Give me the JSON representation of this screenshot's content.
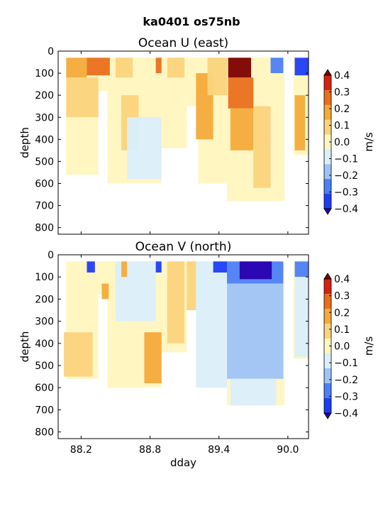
{
  "figure_title": "ka0401 os75nb",
  "colors": {
    "levels": [
      "#3b00e0",
      "#1f3df5",
      "#4d7ff7",
      "#9ec3f8",
      "#dbeefb",
      "#fff6c2",
      "#fbd37c",
      "#f4aa3a",
      "#ea6f1c",
      "#d4220f",
      "#a00000"
    ],
    "below_min": "#2a00b0",
    "above_max": "#7d0000",
    "no_data": "#ffffff"
  },
  "chart_data": [
    {
      "type": "heatmap",
      "title": "Ocean U (east)",
      "ylabel": "depth",
      "xlabel": "",
      "xlim": [
        88.0,
        90.18
      ],
      "ylim": [
        830,
        0
      ],
      "x_ticks": [
        "88.2",
        "88.8",
        "89.4",
        "90.0"
      ],
      "y_ticks": [
        "0",
        "100",
        "200",
        "300",
        "400",
        "500",
        "600",
        "700",
        "800"
      ],
      "colorbar": {
        "label": "m/s",
        "levels": [
          -0.4,
          -0.35,
          -0.25,
          -0.15,
          -0.05,
          0.05,
          0.15,
          0.25,
          0.35,
          0.4
        ],
        "tick_labels": [
          "0.4",
          "0.3",
          "0.2",
          "0.1",
          "0.0",
          "−0.1",
          "−0.2",
          "−0.3",
          "−0.4"
        ],
        "extend": "both"
      },
      "depth_top": 30,
      "coverage": [
        {
          "x_start": 88.07,
          "x_end": 88.35,
          "max_depth": 560
        },
        {
          "x_start": 88.35,
          "x_end": 88.43,
          "max_depth": 180
        },
        {
          "x_start": 88.43,
          "x_end": 88.9,
          "max_depth": 600
        },
        {
          "x_start": 88.9,
          "x_end": 89.12,
          "max_depth": 440
        },
        {
          "x_start": 89.12,
          "x_end": 89.22,
          "max_depth": 250
        },
        {
          "x_start": 89.22,
          "x_end": 89.47,
          "max_depth": 600
        },
        {
          "x_start": 89.47,
          "x_end": 89.97,
          "max_depth": 680
        },
        {
          "x_start": 90.05,
          "x_end": 90.18,
          "max_depth": 470
        }
      ],
      "regions": [
        {
          "x_start": 88.07,
          "x_end": 88.25,
          "depth_start": 30,
          "depth_end": 120,
          "value": 0.18
        },
        {
          "x_start": 88.25,
          "x_end": 88.45,
          "depth_start": 30,
          "depth_end": 110,
          "value": 0.25
        },
        {
          "x_start": 88.07,
          "x_end": 88.35,
          "depth_start": 120,
          "depth_end": 300,
          "value": 0.08
        },
        {
          "x_start": 88.07,
          "x_end": 88.3,
          "depth_start": 300,
          "depth_end": 560,
          "value": -0.02
        },
        {
          "x_start": 88.5,
          "x_end": 88.65,
          "depth_start": 30,
          "depth_end": 120,
          "value": 0.12
        },
        {
          "x_start": 88.55,
          "x_end": 88.7,
          "depth_start": 200,
          "depth_end": 450,
          "value": 0.1
        },
        {
          "x_start": 88.6,
          "x_end": 88.9,
          "depth_start": 300,
          "depth_end": 580,
          "value": -0.06
        },
        {
          "x_start": 88.85,
          "x_end": 88.9,
          "depth_start": 30,
          "depth_end": 100,
          "value": 0.32
        },
        {
          "x_start": 88.95,
          "x_end": 89.1,
          "depth_start": 30,
          "depth_end": 120,
          "value": 0.1
        },
        {
          "x_start": 89.2,
          "x_end": 89.35,
          "depth_start": 100,
          "depth_end": 400,
          "value": 0.2
        },
        {
          "x_start": 89.3,
          "x_end": 89.47,
          "depth_start": 30,
          "depth_end": 200,
          "value": 0.07
        },
        {
          "x_start": 89.48,
          "x_end": 89.68,
          "depth_start": 30,
          "depth_end": 120,
          "value": 0.4
        },
        {
          "x_start": 89.48,
          "x_end": 89.7,
          "depth_start": 120,
          "depth_end": 260,
          "value": 0.3
        },
        {
          "x_start": 89.5,
          "x_end": 89.7,
          "depth_start": 260,
          "depth_end": 450,
          "value": 0.18
        },
        {
          "x_start": 89.7,
          "x_end": 89.85,
          "depth_start": 250,
          "depth_end": 620,
          "value": 0.08
        },
        {
          "x_start": 89.85,
          "x_end": 89.96,
          "depth_start": 30,
          "depth_end": 100,
          "value": -0.35
        },
        {
          "x_start": 89.85,
          "x_end": 89.96,
          "depth_start": 100,
          "depth_end": 400,
          "value": -0.05
        },
        {
          "x_start": 90.06,
          "x_end": 90.18,
          "depth_start": 30,
          "depth_end": 110,
          "value": -0.38
        },
        {
          "x_start": 90.06,
          "x_end": 90.15,
          "depth_start": 200,
          "depth_end": 450,
          "value": 0.18
        }
      ]
    },
    {
      "type": "heatmap",
      "title": "Ocean V (north)",
      "ylabel": "depth",
      "xlabel": "dday",
      "xlim": [
        88.0,
        90.18
      ],
      "ylim": [
        830,
        0
      ],
      "x_ticks": [
        "88.2",
        "88.8",
        "89.4",
        "90.0"
      ],
      "y_ticks": [
        "0",
        "100",
        "200",
        "300",
        "400",
        "500",
        "600",
        "700",
        "800"
      ],
      "colorbar": {
        "label": "m/s",
        "levels": [
          -0.4,
          -0.35,
          -0.25,
          -0.15,
          -0.05,
          0.05,
          0.15,
          0.25,
          0.35,
          0.4
        ],
        "tick_labels": [
          "0.4",
          "0.3",
          "0.2",
          "0.1",
          "0.0",
          "−0.1",
          "−0.2",
          "−0.3",
          "−0.4"
        ],
        "extend": "both"
      },
      "depth_top": 30,
      "coverage": [
        {
          "x_start": 88.07,
          "x_end": 88.35,
          "max_depth": 560
        },
        {
          "x_start": 88.35,
          "x_end": 88.43,
          "max_depth": 180
        },
        {
          "x_start": 88.43,
          "x_end": 88.9,
          "max_depth": 600
        },
        {
          "x_start": 88.9,
          "x_end": 89.12,
          "max_depth": 440
        },
        {
          "x_start": 89.12,
          "x_end": 89.22,
          "max_depth": 250
        },
        {
          "x_start": 89.22,
          "x_end": 89.47,
          "max_depth": 600
        },
        {
          "x_start": 89.47,
          "x_end": 89.97,
          "max_depth": 680
        },
        {
          "x_start": 90.05,
          "x_end": 90.18,
          "max_depth": 470
        }
      ],
      "regions": [
        {
          "x_start": 88.1,
          "x_end": 88.3,
          "depth_start": 30,
          "depth_end": 300,
          "value": -0.05
        },
        {
          "x_start": 88.25,
          "x_end": 88.32,
          "depth_start": 30,
          "depth_end": 80,
          "value": -0.38
        },
        {
          "x_start": 88.38,
          "x_end": 88.44,
          "depth_start": 130,
          "depth_end": 200,
          "value": 0.2
        },
        {
          "x_start": 88.05,
          "x_end": 88.3,
          "depth_start": 350,
          "depth_end": 550,
          "value": 0.07
        },
        {
          "x_start": 88.5,
          "x_end": 88.85,
          "depth_start": 30,
          "depth_end": 300,
          "value": -0.1
        },
        {
          "x_start": 88.55,
          "x_end": 88.6,
          "depth_start": 30,
          "depth_end": 100,
          "value": 0.15
        },
        {
          "x_start": 88.75,
          "x_end": 88.9,
          "depth_start": 350,
          "depth_end": 580,
          "value": 0.18
        },
        {
          "x_start": 88.85,
          "x_end": 88.9,
          "depth_start": 30,
          "depth_end": 80,
          "value": -0.38
        },
        {
          "x_start": 88.95,
          "x_end": 89.1,
          "depth_start": 30,
          "depth_end": 400,
          "value": 0.06
        },
        {
          "x_start": 89.12,
          "x_end": 89.2,
          "depth_start": 30,
          "depth_end": 250,
          "value": 0.1
        },
        {
          "x_start": 89.2,
          "x_end": 89.47,
          "depth_start": 30,
          "depth_end": 600,
          "value": -0.08
        },
        {
          "x_start": 89.35,
          "x_end": 89.47,
          "depth_start": 30,
          "depth_end": 80,
          "value": -0.38
        },
        {
          "x_start": 89.47,
          "x_end": 89.96,
          "depth_start": 30,
          "depth_end": 130,
          "value": -0.3
        },
        {
          "x_start": 89.58,
          "x_end": 89.86,
          "depth_start": 30,
          "depth_end": 110,
          "value": -0.45
        },
        {
          "x_start": 89.47,
          "x_end": 89.96,
          "depth_start": 130,
          "depth_end": 560,
          "value": -0.18
        },
        {
          "x_start": 89.5,
          "x_end": 89.9,
          "depth_start": 560,
          "depth_end": 680,
          "value": -0.15
        },
        {
          "x_start": 90.06,
          "x_end": 90.18,
          "depth_start": 30,
          "depth_end": 100,
          "value": -0.3
        },
        {
          "x_start": 90.06,
          "x_end": 90.18,
          "depth_start": 100,
          "depth_end": 460,
          "value": -0.12
        }
      ]
    }
  ]
}
